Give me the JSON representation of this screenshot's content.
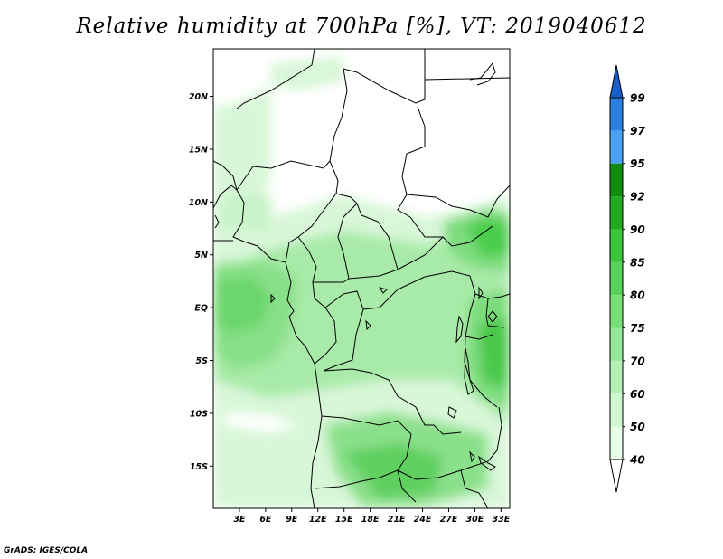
{
  "title": "Relative humidity at 700hPa [%], VT: 2019040612",
  "credit": "GrADS: IGES/COLA",
  "map": {
    "lon_range": [
      0,
      34
    ],
    "lat_range": [
      -19,
      24.5
    ],
    "lat_ticks": [
      {
        "value": 20,
        "label": "20N"
      },
      {
        "value": 15,
        "label": "15N"
      },
      {
        "value": 10,
        "label": "10N"
      },
      {
        "value": 5,
        "label": "5N"
      },
      {
        "value": 0,
        "label": "EQ"
      },
      {
        "value": -5,
        "label": "5S"
      },
      {
        "value": -10,
        "label": "10S"
      },
      {
        "value": -15,
        "label": "15S"
      }
    ],
    "lon_ticks": [
      {
        "value": 3,
        "label": "3E"
      },
      {
        "value": 6,
        "label": "6E"
      },
      {
        "value": 9,
        "label": "9E"
      },
      {
        "value": 12,
        "label": "12E"
      },
      {
        "value": 15,
        "label": "15E"
      },
      {
        "value": 18,
        "label": "18E"
      },
      {
        "value": 21,
        "label": "21E"
      },
      {
        "value": 24,
        "label": "24E"
      },
      {
        "value": 27,
        "label": "27E"
      },
      {
        "value": 30,
        "label": "30E"
      },
      {
        "value": 33,
        "label": "33E"
      }
    ]
  },
  "colorbar": {
    "levels": [
      {
        "label": "40",
        "color": "#e6ffe6"
      },
      {
        "label": "50",
        "color": "#d0f8d0"
      },
      {
        "label": "60",
        "color": "#b4f0b4"
      },
      {
        "label": "70",
        "color": "#96e896"
      },
      {
        "label": "75",
        "color": "#78de78"
      },
      {
        "label": "80",
        "color": "#58d258"
      },
      {
        "label": "85",
        "color": "#3cc43c"
      },
      {
        "label": "90",
        "color": "#22a822"
      },
      {
        "label": "92",
        "color": "#118c11"
      },
      {
        "label": "95",
        "color": "#4ba0f0"
      },
      {
        "label": "97",
        "color": "#2b7fe0"
      },
      {
        "label": "99",
        "color": "#1a5ecc"
      }
    ],
    "below_color": "#ffffff",
    "above_color": "#1a5ecc"
  }
}
